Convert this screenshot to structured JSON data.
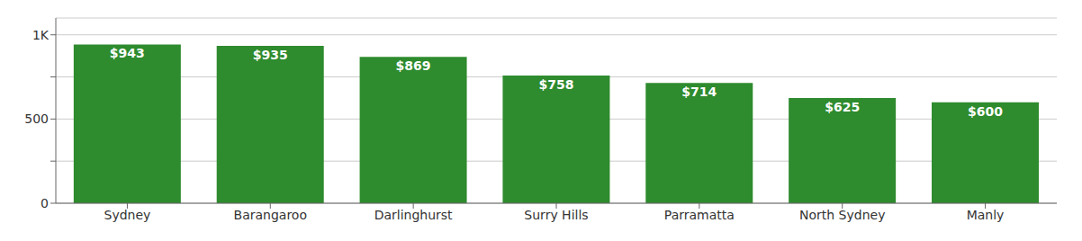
{
  "chart_data": {
    "type": "bar",
    "categories": [
      "Sydney",
      "Barangaroo",
      "Darlinghurst",
      "Surry Hills",
      "Parramatta",
      "North Sydney",
      "Manly"
    ],
    "values": [
      943,
      935,
      869,
      758,
      714,
      625,
      600
    ],
    "value_labels": [
      "$943",
      "$935",
      "$869",
      "$758",
      "$714",
      "$625",
      "$600"
    ],
    "data_labels": true,
    "color": "#2e8b2e",
    "ylim": [
      0,
      1100
    ],
    "yticks": [
      0,
      {
        "value": 250,
        "label": ""
      },
      500,
      {
        "value": 750,
        "label": ""
      },
      {
        "value": 1000,
        "label": "1K"
      }
    ],
    "grid": true
  }
}
